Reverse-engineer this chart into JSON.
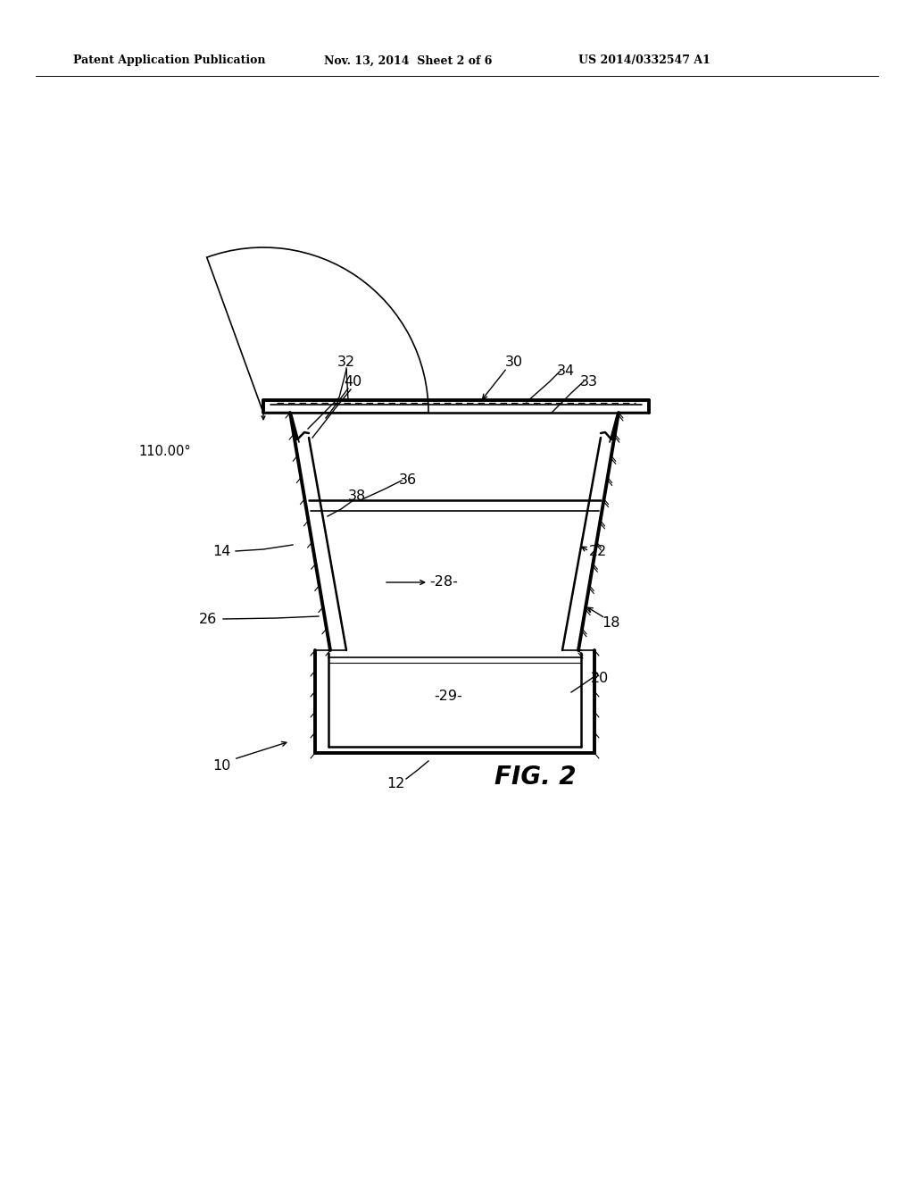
{
  "header_left": "Patent Application Publication",
  "header_center": "Nov. 13, 2014  Sheet 2 of 6",
  "header_right": "US 2014/0332547 A1",
  "fig_label": "FIG. 2",
  "angle_label": "110.00°",
  "bg_color": "#ffffff"
}
